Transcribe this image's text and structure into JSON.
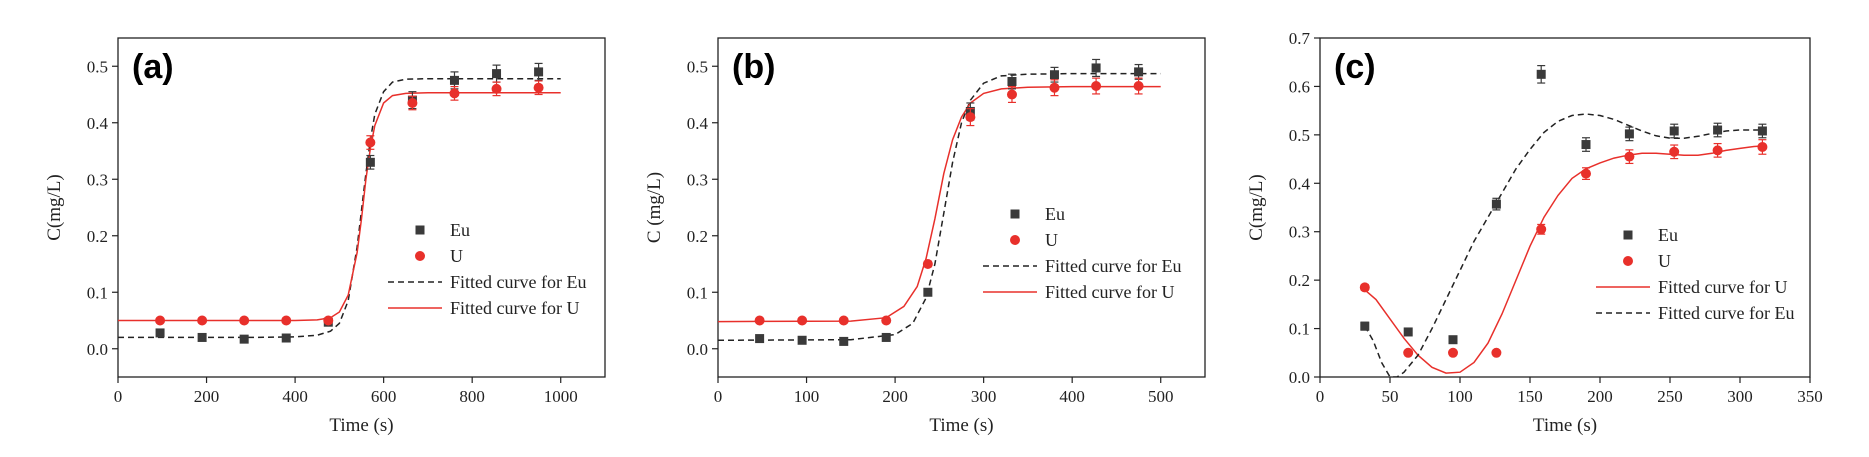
{
  "chart_data": [
    {
      "type": "scatter",
      "panel_label": "(a)",
      "xlabel": "Time (s)",
      "ylabel": "C(mg/L)",
      "xlim": [
        0,
        1100
      ],
      "ylim": [
        -0.05,
        0.55
      ],
      "xticks": [
        0,
        200,
        400,
        600,
        800,
        1000
      ],
      "yticks": [
        0.0,
        0.1,
        0.2,
        0.3,
        0.4,
        0.5
      ],
      "ytick_format": 1,
      "legend_position": "center-right",
      "series": [
        {
          "name": "Eu",
          "kind": "points",
          "marker": "square",
          "color": "#3a3a3a",
          "x": [
            95,
            190,
            285,
            380,
            475,
            570,
            665,
            760,
            855,
            950
          ],
          "y": [
            0.028,
            0.02,
            0.017,
            0.019,
            0.047,
            0.33,
            0.44,
            0.475,
            0.487,
            0.49
          ],
          "err": [
            0.006,
            0.004,
            0.004,
            0.004,
            0.006,
            0.012,
            0.015,
            0.015,
            0.015,
            0.015
          ]
        },
        {
          "name": "U",
          "kind": "points",
          "marker": "circle",
          "color": "#e8302b",
          "x": [
            95,
            190,
            285,
            380,
            475,
            570,
            665,
            760,
            855,
            950
          ],
          "y": [
            0.05,
            0.05,
            0.05,
            0.05,
            0.05,
            0.365,
            0.435,
            0.452,
            0.46,
            0.462
          ],
          "err": [
            0.004,
            0.004,
            0.004,
            0.004,
            0.004,
            0.012,
            0.012,
            0.012,
            0.012,
            0.012
          ]
        },
        {
          "name": "Fitted curve for Eu",
          "kind": "line",
          "dash": true,
          "color": "#222222",
          "x": [
            0,
            300,
            400,
            450,
            480,
            500,
            520,
            540,
            550,
            560,
            570,
            580,
            600,
            620,
            650,
            700,
            800,
            1000
          ],
          "y": [
            0.02,
            0.02,
            0.021,
            0.024,
            0.031,
            0.045,
            0.085,
            0.18,
            0.245,
            0.31,
            0.37,
            0.415,
            0.455,
            0.472,
            0.477,
            0.478,
            0.478,
            0.478
          ]
        },
        {
          "name": "Fitted curve for U",
          "kind": "line",
          "dash": false,
          "color": "#e8302b",
          "x": [
            0,
            400,
            450,
            480,
            500,
            520,
            540,
            550,
            560,
            570,
            580,
            600,
            620,
            650,
            700,
            800,
            1000
          ],
          "y": [
            0.05,
            0.05,
            0.051,
            0.055,
            0.065,
            0.095,
            0.17,
            0.23,
            0.3,
            0.355,
            0.395,
            0.435,
            0.448,
            0.452,
            0.453,
            0.453,
            0.453
          ]
        }
      ]
    },
    {
      "type": "scatter",
      "panel_label": "(b)",
      "xlabel": "Time (s)",
      "ylabel": "C (mg/L)",
      "xlim": [
        0,
        550
      ],
      "ylim": [
        -0.05,
        0.55
      ],
      "xticks": [
        0,
        100,
        200,
        300,
        400,
        500
      ],
      "yticks": [
        0.0,
        0.1,
        0.2,
        0.3,
        0.4,
        0.5
      ],
      "ytick_format": 1,
      "legend_position": "center-right",
      "series": [
        {
          "name": "Eu",
          "kind": "points",
          "marker": "square",
          "color": "#3a3a3a",
          "x": [
            47,
            95,
            142,
            190,
            237,
            285,
            332,
            380,
            427,
            475
          ],
          "y": [
            0.018,
            0.015,
            0.013,
            0.02,
            0.1,
            0.42,
            0.473,
            0.485,
            0.497,
            0.49
          ],
          "err": [
            0.004,
            0.004,
            0.004,
            0.004,
            0.006,
            0.015,
            0.013,
            0.013,
            0.015,
            0.013
          ]
        },
        {
          "name": "U",
          "kind": "points",
          "marker": "circle",
          "color": "#e8302b",
          "x": [
            47,
            95,
            142,
            190,
            237,
            285,
            332,
            380,
            427,
            475
          ],
          "y": [
            0.05,
            0.05,
            0.05,
            0.05,
            0.15,
            0.41,
            0.45,
            0.462,
            0.465,
            0.465
          ],
          "err": [
            0.004,
            0.004,
            0.004,
            0.004,
            0.005,
            0.015,
            0.014,
            0.014,
            0.014,
            0.014
          ]
        },
        {
          "name": "Fitted curve for Eu",
          "kind": "line",
          "dash": true,
          "color": "#222222",
          "x": [
            0,
            150,
            200,
            220,
            235,
            245,
            255,
            265,
            275,
            285,
            300,
            320,
            350,
            400,
            500
          ],
          "y": [
            0.015,
            0.016,
            0.025,
            0.045,
            0.09,
            0.15,
            0.24,
            0.33,
            0.4,
            0.44,
            0.47,
            0.483,
            0.486,
            0.487,
            0.487
          ]
        },
        {
          "name": "Fitted curve for U",
          "kind": "line",
          "dash": false,
          "color": "#e8302b",
          "x": [
            0,
            150,
            190,
            210,
            225,
            235,
            245,
            255,
            265,
            275,
            285,
            300,
            320,
            350,
            400,
            500
          ],
          "y": [
            0.048,
            0.049,
            0.055,
            0.075,
            0.11,
            0.16,
            0.23,
            0.31,
            0.37,
            0.41,
            0.435,
            0.452,
            0.46,
            0.463,
            0.464,
            0.464
          ]
        }
      ]
    },
    {
      "type": "scatter",
      "panel_label": "(c)",
      "xlabel": "Time (s)",
      "ylabel": "C(mg/L)",
      "xlim": [
        0,
        350
      ],
      "ylim": [
        0.0,
        0.7
      ],
      "xticks": [
        0,
        50,
        100,
        150,
        200,
        250,
        300,
        350
      ],
      "yticks": [
        0.0,
        0.1,
        0.2,
        0.3,
        0.4,
        0.5,
        0.6,
        0.7
      ],
      "ytick_format": 1,
      "legend_position": "center-right",
      "series": [
        {
          "name": "Eu",
          "kind": "points",
          "marker": "square",
          "color": "#3a3a3a",
          "x": [
            32,
            63,
            95,
            126,
            158,
            190,
            221,
            253,
            284,
            316
          ],
          "y": [
            0.105,
            0.093,
            0.077,
            0.357,
            0.625,
            0.48,
            0.502,
            0.508,
            0.51,
            0.508
          ],
          "err": [
            0.008,
            0.006,
            0.006,
            0.012,
            0.018,
            0.014,
            0.014,
            0.014,
            0.014,
            0.014
          ]
        },
        {
          "name": "U",
          "kind": "points",
          "marker": "circle",
          "color": "#e8302b",
          "x": [
            32,
            63,
            95,
            126,
            158,
            190,
            221,
            253,
            284,
            316
          ],
          "y": [
            0.185,
            0.05,
            0.05,
            0.05,
            0.305,
            0.42,
            0.455,
            0.465,
            0.468,
            0.475
          ],
          "err": [
            0.006,
            0.004,
            0.004,
            0.004,
            0.01,
            0.012,
            0.014,
            0.014,
            0.014,
            0.015
          ]
        },
        {
          "name": "Fitted curve for U",
          "kind": "line",
          "dash": false,
          "color": "#e8302b",
          "x": [
            30,
            40,
            50,
            60,
            70,
            80,
            90,
            100,
            110,
            120,
            130,
            140,
            150,
            160,
            170,
            180,
            190,
            200,
            210,
            220,
            230,
            240,
            250,
            260,
            270,
            280,
            290,
            300,
            310,
            316
          ],
          "y": [
            0.185,
            0.16,
            0.12,
            0.08,
            0.045,
            0.02,
            0.008,
            0.01,
            0.03,
            0.07,
            0.13,
            0.2,
            0.27,
            0.33,
            0.375,
            0.41,
            0.43,
            0.442,
            0.452,
            0.458,
            0.462,
            0.462,
            0.46,
            0.458,
            0.458,
            0.462,
            0.468,
            0.472,
            0.476,
            0.477
          ]
        },
        {
          "name": "Fitted curve for Eu",
          "kind": "line",
          "dash": true,
          "color": "#222222",
          "x": [
            32,
            38,
            44,
            50,
            55,
            60,
            70,
            80,
            90,
            100,
            110,
            120,
            130,
            140,
            150,
            160,
            170,
            180,
            190,
            200,
            210,
            220,
            230,
            240,
            250,
            260,
            270,
            280,
            290,
            300,
            310,
            316
          ],
          "y": [
            0.105,
            0.075,
            0.03,
            0.0,
            0.0,
            0.01,
            0.045,
            0.1,
            0.16,
            0.22,
            0.28,
            0.33,
            0.38,
            0.43,
            0.47,
            0.505,
            0.528,
            0.54,
            0.543,
            0.54,
            0.532,
            0.52,
            0.508,
            0.498,
            0.493,
            0.493,
            0.497,
            0.503,
            0.508,
            0.51,
            0.51,
            0.51
          ]
        }
      ]
    }
  ]
}
